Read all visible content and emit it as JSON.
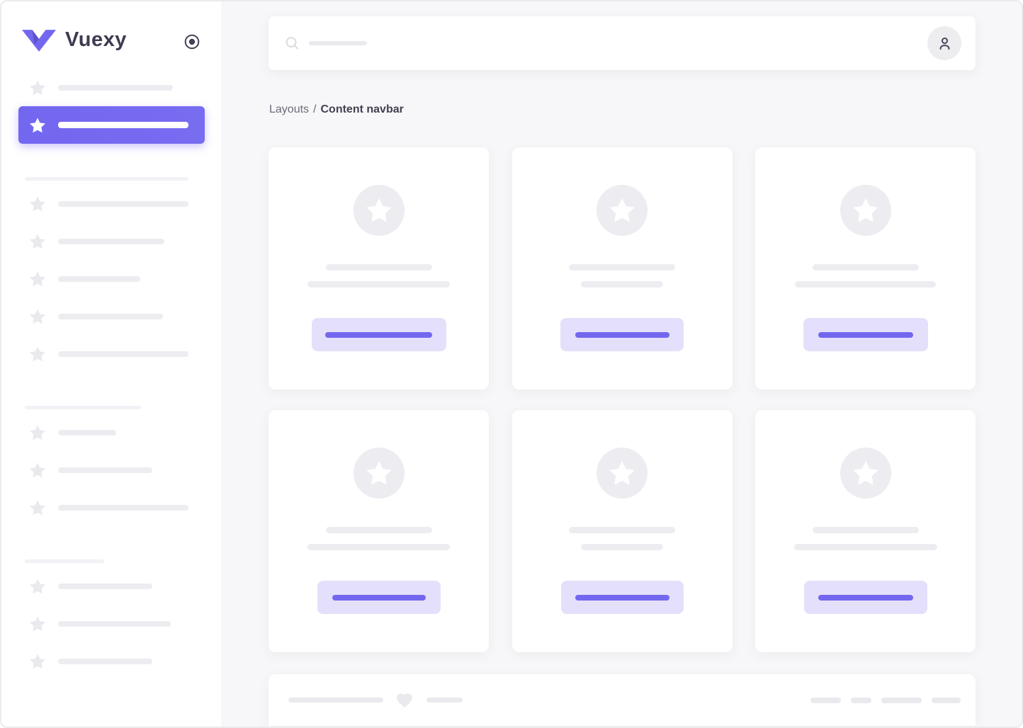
{
  "brand": {
    "name": "Vuexy"
  },
  "breadcrumb": {
    "parent": "Layouts",
    "separator": "/",
    "current": "Content navbar"
  },
  "colors": {
    "primary": "#7367f0",
    "primary_light": "#e4e0fb",
    "skeleton": "#ededf1",
    "sidebar_bg": "#ffffff",
    "content_bg": "#f7f7f9",
    "text_dark": "#444050",
    "text_muted": "#6d6b77"
  },
  "icons": {
    "logo": "vuexy-v-icon",
    "sidebar_toggle": "radio-circle-icon",
    "menu_bullet": "star-icon",
    "search": "search-icon",
    "user": "person-icon",
    "footer": "heart-icon"
  },
  "sidebar": {
    "top_items": [
      {
        "width": 162,
        "active": false
      },
      {
        "width": 184,
        "active": true
      }
    ],
    "sections": [
      {
        "divider_width": 231,
        "items": [
          184,
          150,
          116,
          148,
          184
        ]
      },
      {
        "divider_width": 164,
        "items": [
          82,
          133,
          184
        ]
      },
      {
        "divider_width": 112,
        "items": [
          133,
          159,
          133
        ]
      }
    ]
  },
  "cards": [
    {
      "line1": 150,
      "line2": 201,
      "button_width": 190,
      "button_line": 151
    },
    {
      "line1": 150,
      "line2": 116,
      "button_width": 174,
      "button_line": 133
    },
    {
      "line1": 150,
      "line2": 199,
      "button_width": 176,
      "button_line": 134
    },
    {
      "line1": 150,
      "line2": 201,
      "button_width": 174,
      "button_line": 132
    },
    {
      "line1": 150,
      "line2": 116,
      "button_width": 173,
      "button_line": 133
    },
    {
      "line1": 150,
      "line2": 202,
      "button_width": 174,
      "button_line": 134
    }
  ],
  "footer": {
    "left_lines": [
      134,
      51
    ],
    "right_pills": [
      43,
      29,
      57,
      41
    ]
  }
}
